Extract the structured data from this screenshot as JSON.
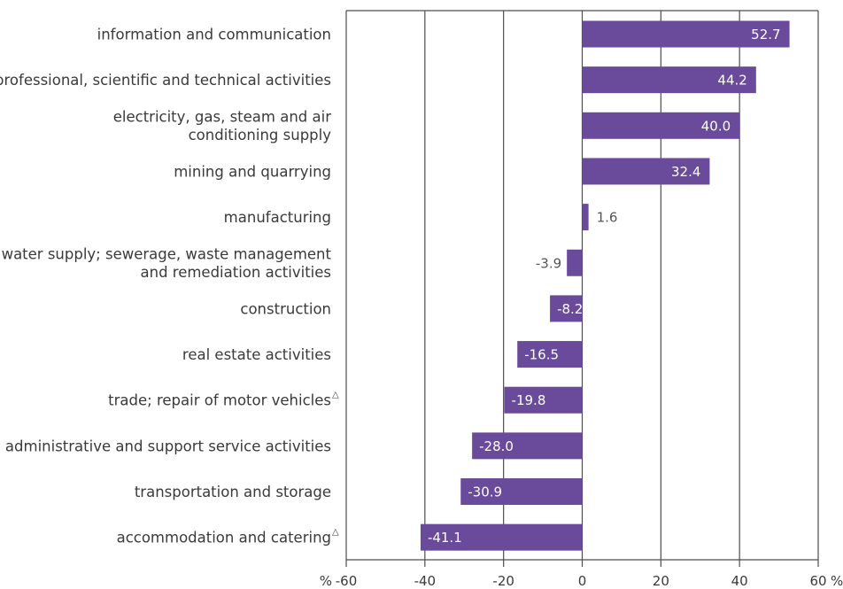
{
  "chart_data": {
    "type": "bar",
    "orientation": "horizontal",
    "categories": [
      [
        "information and communication"
      ],
      [
        "professional, scientific and technical activities"
      ],
      [
        "electricity, gas, steam and air",
        "conditioning supply"
      ],
      [
        "mining and quarrying"
      ],
      [
        "manufacturing"
      ],
      [
        "water supply; sewerage, waste management",
        "and remediation activities"
      ],
      [
        "construction"
      ],
      [
        "real estate activities"
      ],
      [
        "trade; repair of motor vehicles"
      ],
      [
        "administrative and support service activities"
      ],
      [
        "transportation and storage"
      ],
      [
        "accommodation and catering"
      ]
    ],
    "category_marks": [
      "",
      "",
      "",
      "",
      "",
      "",
      "",
      "",
      "△",
      "",
      "",
      "△"
    ],
    "values": [
      52.7,
      44.2,
      40.0,
      32.4,
      1.6,
      -3.9,
      -8.2,
      -16.5,
      -19.8,
      -28.0,
      -30.9,
      -41.1
    ],
    "value_labels": [
      "52.7",
      "44.2",
      "40.0",
      "32.4",
      "1.6",
      "-3.9",
      "-8.2",
      "-16.5",
      "-19.8",
      "-28.0",
      "-30.9",
      "-41.1"
    ],
    "xlim": [
      -60,
      60
    ],
    "xticks": [
      -60,
      -40,
      -20,
      0,
      20,
      40,
      60
    ],
    "xtick_labels": [
      "-60",
      "-40",
      "-20",
      "0",
      "20",
      "40",
      "60"
    ],
    "x_unit_left": "%",
    "x_unit_right": "%",
    "grid": "vertical",
    "bar_color": "#6a4a9a",
    "grid_color": "#4d4d4d"
  }
}
